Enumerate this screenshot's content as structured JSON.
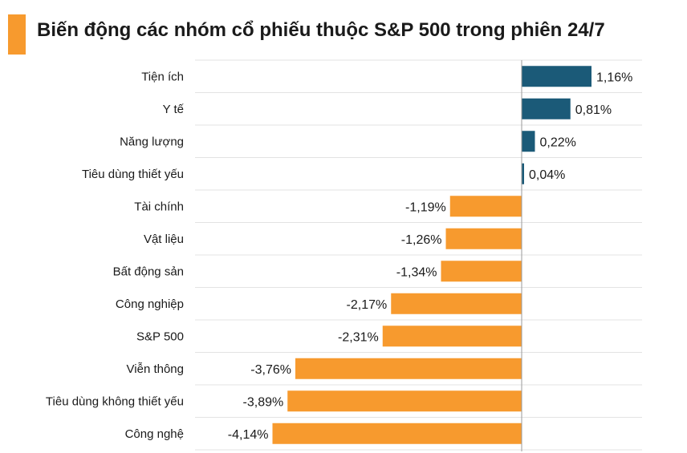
{
  "title": "Biến động các nhóm cổ phiếu thuộc S&P 500 trong phiên 24/7",
  "colors": {
    "positive": "#1b5a78",
    "negative": "#f79a2e",
    "accent": "#f79a2e",
    "grid": "#e3e3e3",
    "axis": "#9a9a9a"
  },
  "chart_data": {
    "type": "bar",
    "orientation": "horizontal",
    "title": "Biến động các nhóm cổ phiếu thuộc S&P 500 trong phiên 24/7",
    "categories": [
      "Tiện ích",
      "Y tế",
      "Năng lượng",
      "Tiêu dùng thiết yếu",
      "Tài chính",
      "Vật liệu",
      "Bất động sản",
      "Công nghiệp",
      "S&P 500",
      "Viễn thông",
      "Tiêu dùng không thiết yếu",
      "Công nghệ"
    ],
    "values": [
      1.16,
      0.81,
      0.22,
      0.04,
      -1.19,
      -1.26,
      -1.34,
      -2.17,
      -2.31,
      -3.76,
      -3.89,
      -4.14
    ],
    "value_labels": [
      "1,16%",
      "0,81%",
      "0,22%",
      "0,04%",
      "-1,19%",
      "-1,26%",
      "-1,34%",
      "-2,17%",
      "-2,31%",
      "-3,76%",
      "-3,89%",
      "-4,14%"
    ],
    "xlim": [
      -4.14,
      1.16
    ],
    "grid": true
  }
}
